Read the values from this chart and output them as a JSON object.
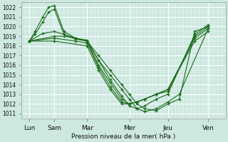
{
  "title": "Pression niveau de la mer( hPa )",
  "bg_color": "#cce8e0",
  "grid_color": "#ffffff",
  "line_color": "#1a6b1a",
  "marker": "+",
  "ylim": [
    1010.5,
    1022.5
  ],
  "ytick_min": 1011,
  "ytick_max": 1022,
  "xlim": [
    0,
    5.3
  ],
  "x_tick_positions": [
    0.2,
    0.85,
    1.7,
    2.8,
    3.8,
    4.85
  ],
  "x_labels": [
    "Lun",
    "Sam",
    "Mar",
    "Mer",
    "Jeu",
    "Ven"
  ],
  "series": [
    {
      "x": [
        0.2,
        0.35,
        0.55,
        0.7,
        0.85,
        1.1,
        1.4,
        1.7,
        2.0,
        2.3,
        2.6,
        2.8,
        3.0,
        3.2,
        3.5,
        3.8,
        4.1,
        4.5,
        4.85
      ],
      "y": [
        1018.5,
        1019.5,
        1021.0,
        1022.0,
        1022.2,
        1019.5,
        1018.8,
        1018.5,
        1017.0,
        1015.5,
        1014.0,
        1013.0,
        1012.0,
        1011.5,
        1011.3,
        1012.0,
        1012.5,
        1019.5,
        1020.0
      ]
    },
    {
      "x": [
        0.2,
        0.35,
        0.55,
        0.7,
        0.85,
        1.1,
        1.4,
        1.7,
        2.0,
        2.3,
        2.6,
        2.8,
        3.0,
        3.2,
        3.5,
        3.8,
        4.1,
        4.85
      ],
      "y": [
        1018.5,
        1019.2,
        1020.5,
        1021.5,
        1021.8,
        1019.2,
        1018.7,
        1018.5,
        1016.5,
        1015.0,
        1013.5,
        1012.5,
        1011.5,
        1011.2,
        1011.5,
        1012.2,
        1013.0,
        1019.8
      ]
    },
    {
      "x": [
        0.2,
        0.55,
        0.85,
        1.1,
        1.4,
        1.7,
        2.0,
        2.3,
        2.6,
        2.8,
        3.0,
        3.2,
        3.5,
        3.8,
        4.5,
        4.85
      ],
      "y": [
        1018.5,
        1019.3,
        1019.5,
        1019.2,
        1018.8,
        1018.6,
        1016.5,
        1014.5,
        1012.8,
        1011.8,
        1011.5,
        1011.8,
        1012.5,
        1013.0,
        1019.2,
        1020.2
      ]
    },
    {
      "x": [
        0.2,
        0.85,
        1.1,
        1.4,
        1.7,
        2.0,
        2.3,
        2.6,
        2.8,
        3.0,
        3.2,
        3.5,
        3.8,
        4.5,
        4.85
      ],
      "y": [
        1018.5,
        1019.0,
        1019.0,
        1018.8,
        1018.5,
        1016.0,
        1014.2,
        1012.5,
        1012.0,
        1012.2,
        1012.5,
        1013.0,
        1013.3,
        1019.0,
        1020.0
      ]
    },
    {
      "x": [
        0.2,
        0.85,
        1.4,
        1.7,
        2.0,
        2.3,
        2.6,
        2.8,
        3.0,
        3.2,
        3.5,
        3.8,
        4.5,
        4.85
      ],
      "y": [
        1018.5,
        1018.8,
        1018.5,
        1018.3,
        1015.8,
        1013.8,
        1012.2,
        1012.0,
        1012.2,
        1012.5,
        1013.0,
        1013.5,
        1018.8,
        1019.8
      ]
    },
    {
      "x": [
        0.2,
        0.85,
        1.7,
        2.0,
        2.3,
        2.6,
        2.8,
        3.0,
        3.2,
        3.5,
        3.8,
        4.5,
        4.85
      ],
      "y": [
        1018.5,
        1018.5,
        1018.0,
        1015.5,
        1013.5,
        1012.0,
        1012.0,
        1012.2,
        1012.5,
        1013.0,
        1013.5,
        1018.5,
        1019.5
      ]
    }
  ]
}
